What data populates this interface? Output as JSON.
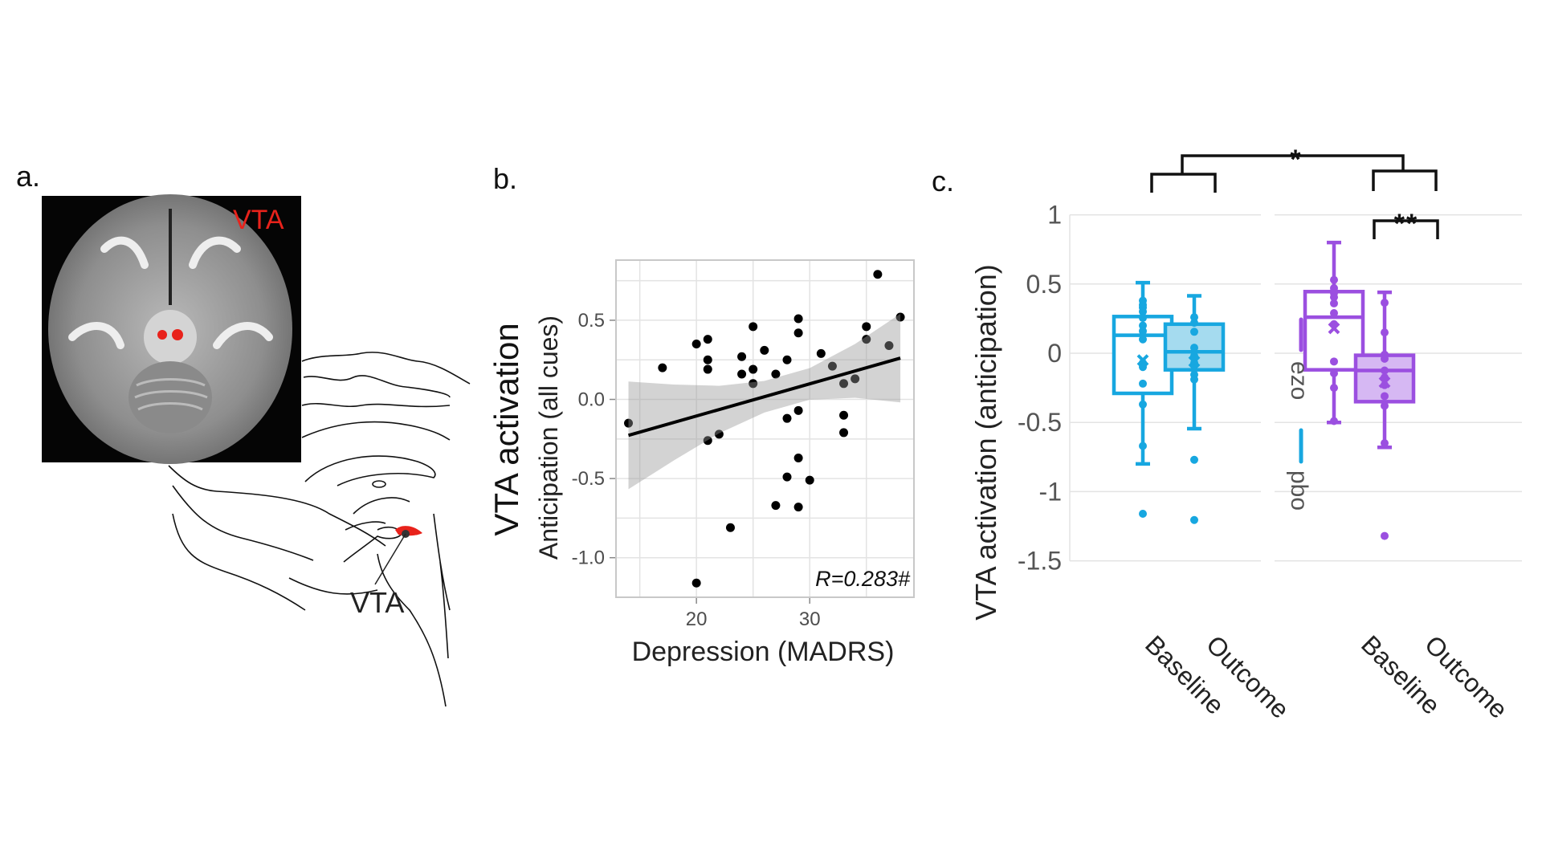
{
  "panel_a": {
    "label": "a.",
    "mri_label": "VTA",
    "sagittal_label": "VTA",
    "highlight_color": "#e8221b"
  },
  "panel_b": {
    "label": "b.",
    "outer_ylabel": "VTA activation"
  },
  "panel_c": {
    "label": "c.",
    "legend": [
      {
        "name": "ezo",
        "color": "#9b4fe0"
      },
      {
        "name": "pbo",
        "color": "#17a7e0"
      }
    ],
    "significance": [
      {
        "between": "pbo vs ezo (change)",
        "label": "*"
      },
      {
        "between": "ezo Baseline vs ezo Outcome",
        "label": "**"
      }
    ]
  },
  "chart_data": [
    {
      "type": "scatter",
      "xlabel": "Depression (MADRS)",
      "ylabel": "Anticipation (all cues)",
      "xlim": [
        12.9,
        39.2
      ],
      "ylim": [
        -1.25,
        0.88
      ],
      "xticks": [
        "20",
        "30"
      ],
      "xtick_values": [
        20,
        30
      ],
      "yticks": [
        "0.5",
        "0.0",
        "-0.5",
        "-1.0"
      ],
      "ytick_values": [
        0.5,
        0.0,
        -0.5,
        -1.0
      ],
      "grid": true,
      "annotation": "R=0.283#",
      "points": [
        [
          14,
          -0.15
        ],
        [
          17,
          0.2
        ],
        [
          20,
          0.35
        ],
        [
          20,
          -1.16
        ],
        [
          21,
          0.38
        ],
        [
          21,
          0.25
        ],
        [
          21,
          0.19
        ],
        [
          21,
          -0.26
        ],
        [
          22,
          -0.22
        ],
        [
          23,
          -0.81
        ],
        [
          24,
          0.27
        ],
        [
          24,
          0.16
        ],
        [
          25,
          0.46
        ],
        [
          25,
          0.19
        ],
        [
          25,
          0.1
        ],
        [
          26,
          0.31
        ],
        [
          27,
          0.16
        ],
        [
          27,
          -0.67
        ],
        [
          28,
          0.25
        ],
        [
          28,
          -0.12
        ],
        [
          28,
          -0.49
        ],
        [
          29,
          0.51
        ],
        [
          29,
          0.42
        ],
        [
          29,
          -0.07
        ],
        [
          29,
          -0.37
        ],
        [
          29,
          -0.68
        ],
        [
          30,
          -0.51
        ],
        [
          31,
          0.29
        ],
        [
          32,
          0.21
        ],
        [
          33,
          0.1
        ],
        [
          33,
          -0.1
        ],
        [
          33,
          -0.21
        ],
        [
          34,
          0.13
        ],
        [
          35,
          0.46
        ],
        [
          35,
          0.38
        ],
        [
          36,
          0.79
        ],
        [
          37,
          0.34
        ],
        [
          38,
          0.52
        ]
      ],
      "fit": {
        "x": [
          14,
          18,
          22,
          26,
          30,
          34,
          38
        ],
        "y": [
          -0.227,
          -0.146,
          -0.064,
          0.017,
          0.098,
          0.18,
          0.261
        ],
        "ci_half_width": [
          0.34,
          0.24,
          0.15,
          0.1,
          0.1,
          0.17,
          0.28
        ]
      }
    },
    {
      "type": "box",
      "ylabel": "VTA activation (anticipation)",
      "ylim": [
        -1.5,
        1
      ],
      "yticks": [
        "1",
        "0.5",
        "0",
        "-0.5",
        "-1",
        "-1.5"
      ],
      "ytick_values": [
        1,
        0.5,
        0,
        -0.5,
        -1,
        -1.5
      ],
      "grid": true,
      "groups": [
        {
          "name": "pbo",
          "boxes": [
            {
              "category": "Baseline",
              "q1": -0.29,
              "median": 0.13,
              "q3": 0.265,
              "whisker_low": -0.8,
              "whisker_high": 0.51,
              "mean": -0.05,
              "filled": false,
              "points": [
                0.38,
                0.35,
                0.33,
                0.3,
                0.255,
                0.2,
                0.16,
                0.1,
                -0.07,
                -0.1,
                -0.22,
                -0.37,
                -0.67,
                -1.16
              ]
            },
            {
              "category": "Outcome",
              "q1": -0.12,
              "median": 0.01,
              "q3": 0.21,
              "whisker_low": -0.545,
              "whisker_high": 0.415,
              "mean": -0.06,
              "filled": true,
              "points": [
                0.26,
                0.22,
                0.155,
                0.04,
                -0.02,
                -0.07,
                -0.09,
                -0.155,
                -0.19,
                -0.77,
                -1.205
              ]
            }
          ]
        },
        {
          "name": "ezo",
          "boxes": [
            {
              "category": "Baseline",
              "q1": -0.12,
              "median": 0.26,
              "q3": 0.445,
              "whisker_low": -0.5,
              "whisker_high": 0.8,
              "mean": 0.18,
              "filled": false,
              "points": [
                0.53,
                0.47,
                0.435,
                0.405,
                0.36,
                0.29,
                0.21,
                -0.06,
                -0.145,
                -0.25,
                -0.49
              ]
            },
            {
              "category": "Outcome",
              "q1": -0.35,
              "median": -0.125,
              "q3": -0.015,
              "whisker_low": -0.68,
              "whisker_high": 0.44,
              "mean": -0.21,
              "filled": true,
              "points": [
                0.365,
                0.15,
                -0.01,
                -0.04,
                -0.125,
                -0.175,
                -0.23,
                -0.31,
                -0.38,
                -0.65,
                -1.32
              ]
            }
          ]
        }
      ]
    }
  ]
}
